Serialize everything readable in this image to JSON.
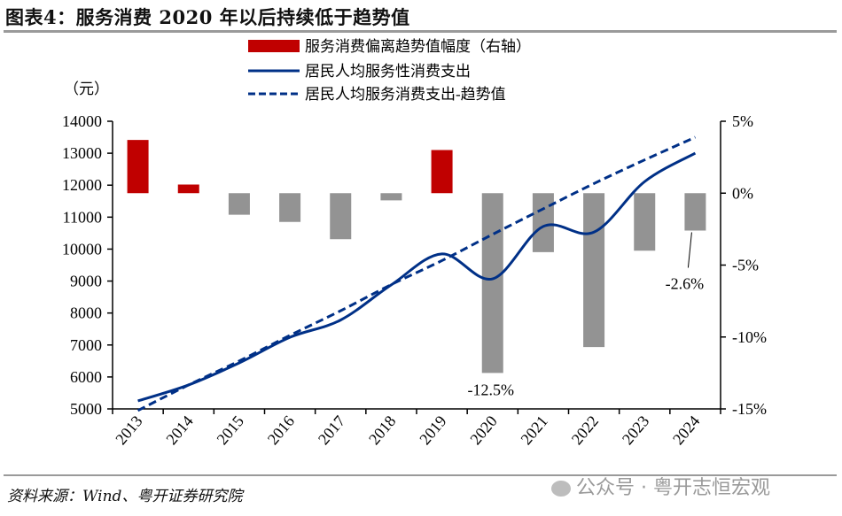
{
  "title": "图表4：服务消费 2020 年以后持续低于趋势值",
  "source": "资料来源：Wind、粤开证券研究院",
  "watermark": "公众号 · 粤开志恒宏观",
  "chart_data": {
    "type": "bar+line",
    "categories": [
      "2013",
      "2014",
      "2015",
      "2016",
      "2017",
      "2018",
      "2019",
      "2020",
      "2021",
      "2022",
      "2023",
      "2024"
    ],
    "series": [
      {
        "name": "服务消费偏离趋势值幅度（右轴）",
        "type": "bar",
        "axis": "right",
        "unit": "%",
        "values": [
          3.7,
          0.6,
          -1.5,
          -2.0,
          -3.2,
          -0.5,
          3.0,
          -12.5,
          -4.1,
          -10.7,
          -4.0,
          -2.6
        ],
        "positive_color": "#C00000",
        "negative_color": "#939393"
      },
      {
        "name": "居民人均服务性消费支出",
        "type": "line",
        "axis": "left",
        "style": "solid",
        "color": "#003087",
        "values": [
          5250,
          5750,
          6440,
          7240,
          7780,
          8880,
          9850,
          9070,
          10710,
          10530,
          12110,
          13000
        ]
      },
      {
        "name": "居民人均服务消费支出-趋势值",
        "type": "line",
        "axis": "left",
        "style": "dashed",
        "color": "#003087",
        "values": [
          4950,
          5750,
          6500,
          7300,
          8070,
          8890,
          9640,
          10460,
          11260,
          12050,
          12790,
          13500
        ]
      }
    ],
    "left_axis": {
      "label": "（元）",
      "min": 5000,
      "max": 14000,
      "ticks": [
        5000,
        6000,
        7000,
        8000,
        9000,
        10000,
        11000,
        12000,
        13000,
        14000
      ]
    },
    "right_axis": {
      "min": -15,
      "max": 5,
      "ticks": [
        -15,
        -10,
        -5,
        0,
        5
      ],
      "tick_labels": [
        "-15%",
        "-10%",
        "-5%",
        "0%",
        "5%"
      ]
    },
    "annotations": [
      {
        "category": "2020",
        "text": "-12.5%"
      },
      {
        "category": "2024",
        "text": "-2.6%"
      }
    ],
    "legend_position": "top-center",
    "grid": false
  }
}
